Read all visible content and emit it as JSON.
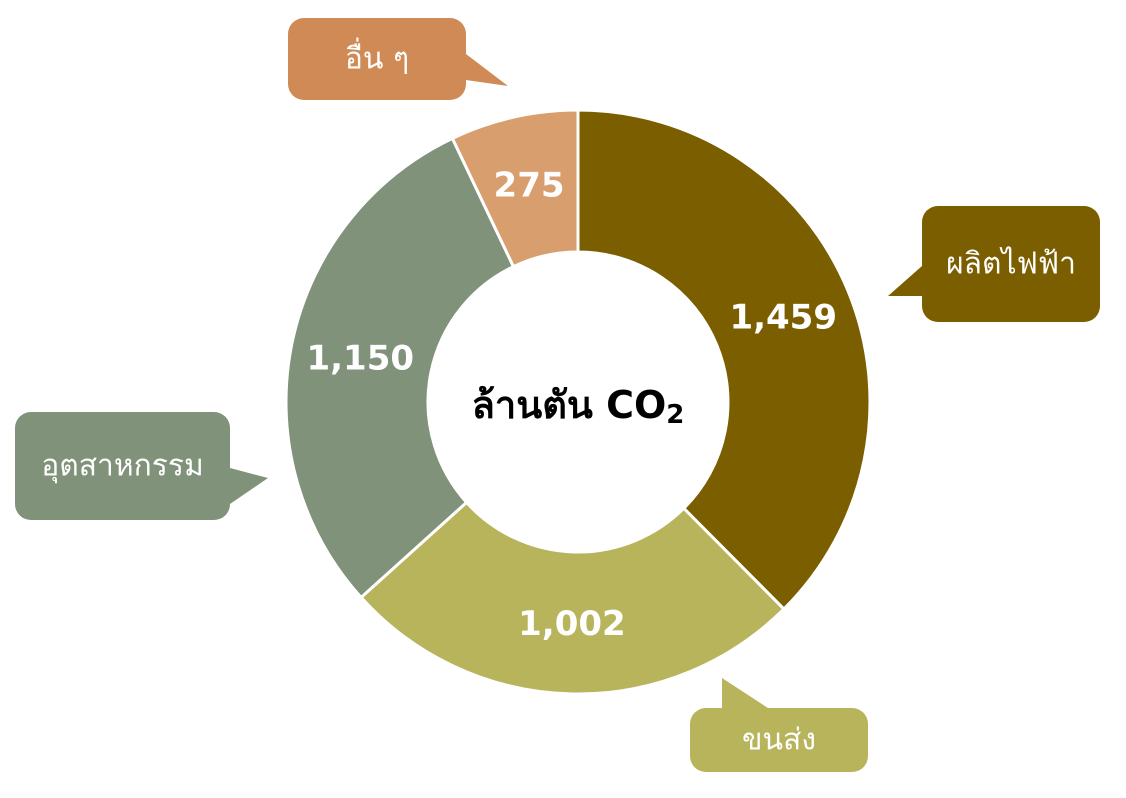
{
  "chart_data": {
    "type": "pie",
    "center_label": "ล้านตัน CO",
    "center_label_subscript": "2",
    "series": [
      {
        "name": "ผลิตไฟฟ้า",
        "value": 1459,
        "display": "1,459",
        "color": "#7b5e00"
      },
      {
        "name": "ขนส่ง",
        "value": 1002,
        "display": "1,002",
        "color": "#b8b45c"
      },
      {
        "name": "อุตสาหกรรม",
        "value": 1150,
        "display": "1,150",
        "color": "#80927a"
      },
      {
        "name": "อื่น ๆ",
        "value": 275,
        "display": "275",
        "color": "#d89e6e"
      }
    ],
    "callout_colors": {
      "ผลิตไฟฟ้า": "#7b5e00",
      "ขนส่ง": "#b8b45c",
      "อุตสาหกรรม": "#80927a",
      "อื่น ๆ": "#d08a55"
    }
  }
}
